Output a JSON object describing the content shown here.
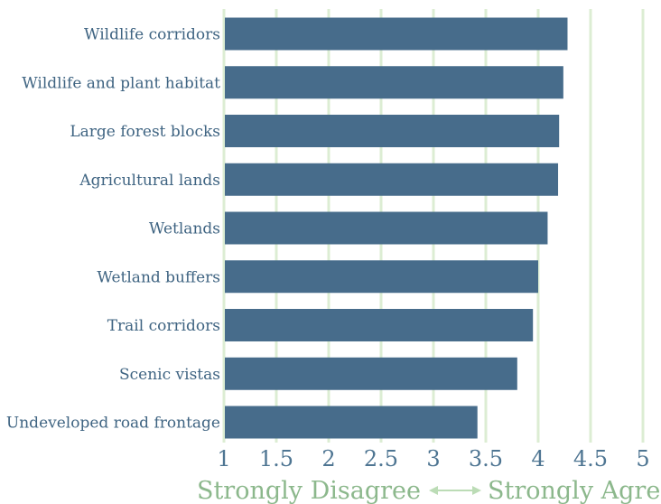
{
  "chart_data": {
    "type": "bar",
    "orientation": "horizontal",
    "categories": [
      "Wildlife corridors",
      "Wildlife and plant habitat",
      "Large forest blocks",
      "Agricultural lands",
      "Wetlands",
      "Wetland buffers",
      "Trail corridors",
      "Scenic vistas",
      "Undeveloped road frontage"
    ],
    "values": [
      4.28,
      4.24,
      4.2,
      4.19,
      4.09,
      4.0,
      3.95,
      3.8,
      3.42
    ],
    "xlim": [
      1,
      5
    ],
    "xticks": [
      "1",
      "1.5",
      "2",
      "2.5",
      "3",
      "3.5",
      "4",
      "4.5",
      "5"
    ],
    "xlabel_left": "Strongly Disagree",
    "xlabel_right": "Strongly Agree",
    "grid": "vertical",
    "colors": {
      "bar": "#476c8b",
      "grid": "#dcedd3",
      "label": "#3f6482",
      "axis_caption": "#8cb88c",
      "arrow": "#bcdcb6"
    }
  }
}
